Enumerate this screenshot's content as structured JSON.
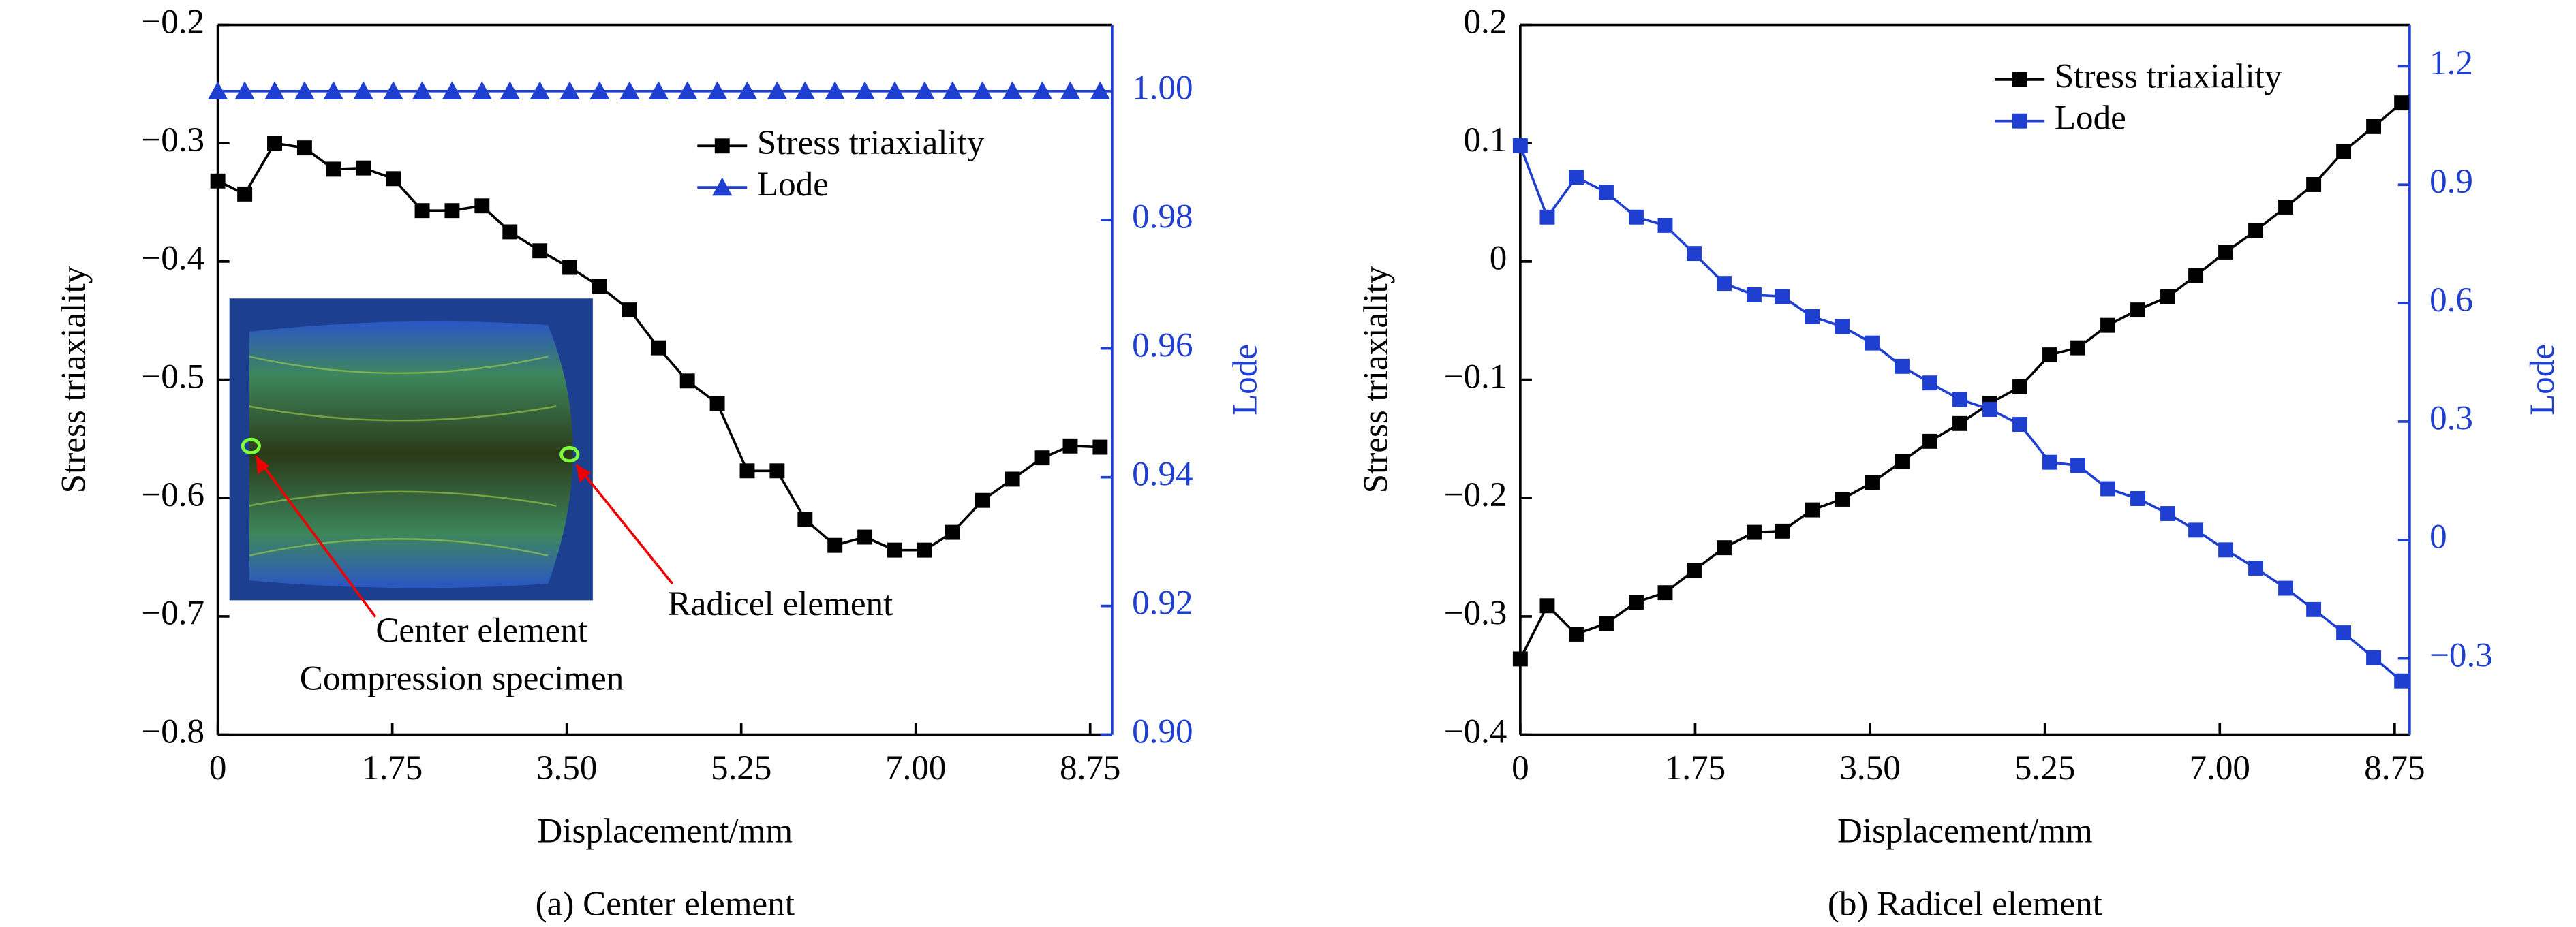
{
  "chart_data": [
    {
      "type": "line",
      "title": "(a) Center element",
      "xlabel": "Displacement/mm",
      "ylabel": "Stress triaxiality",
      "y2label": "Lode",
      "x": [
        0,
        0.27,
        0.57,
        0.87,
        1.16,
        1.46,
        1.76,
        2.05,
        2.35,
        2.65,
        2.93,
        3.23,
        3.53,
        3.83,
        4.13,
        4.42,
        4.71,
        5.01,
        5.31,
        5.61,
        5.89,
        6.19,
        6.49,
        6.79,
        7.09,
        7.37,
        7.67,
        7.97,
        8.27,
        8.55,
        8.85
      ],
      "series": [
        {
          "name": "Stress triaxiality",
          "color": "#000000",
          "marker": "square",
          "axis": "y",
          "values": [
            -0.332,
            -0.343,
            -0.3,
            -0.304,
            -0.322,
            -0.321,
            -0.33,
            -0.357,
            -0.357,
            -0.353,
            -0.375,
            -0.391,
            -0.405,
            -0.421,
            -0.441,
            -0.473,
            -0.501,
            -0.52,
            -0.577,
            -0.577,
            -0.618,
            -0.64,
            -0.633,
            -0.644,
            -0.644,
            -0.629,
            -0.602,
            -0.584,
            -0.566,
            -0.556,
            -0.557
          ]
        },
        {
          "name": "Lode",
          "color": "#1f3fd1",
          "marker": "triangle",
          "axis": "y2",
          "values": [
            1,
            1,
            1,
            1,
            1,
            1,
            1,
            1,
            1,
            1,
            1,
            1,
            1,
            1,
            1,
            1,
            1,
            1,
            1,
            1,
            1,
            1,
            1,
            1,
            1,
            1,
            1,
            1,
            1,
            1,
            1
          ]
        }
      ],
      "xlim": [
        0,
        8.97
      ],
      "xticks": [
        0,
        1.75,
        {
          "value": 3.5,
          "label": "3.50"
        },
        5.25,
        {
          "value": 7,
          "label": "7.00"
        },
        8.75
      ],
      "ylim": [
        -0.8,
        -0.2
      ],
      "yticks": [
        {
          "value": -0.2,
          "label": "−0.2"
        },
        {
          "value": -0.3,
          "label": "−0.3"
        },
        {
          "value": -0.4,
          "label": "−0.4"
        },
        {
          "value": -0.5,
          "label": "−0.5"
        },
        {
          "value": -0.6,
          "label": "−0.6"
        },
        {
          "value": -0.7,
          "label": "−0.7"
        },
        {
          "value": -0.8,
          "label": "−0.8"
        }
      ],
      "y2lim": [
        0.9,
        1.0103
      ],
      "y2ticks": [
        {
          "value": 0.9,
          "label": "0.90"
        },
        0.92,
        0.94,
        0.96,
        0.98,
        {
          "value": 1,
          "label": "1.00"
        }
      ],
      "legend": "upper right",
      "annotations": [
        "Center element",
        "Compression specimen",
        "Radicel element"
      ]
    },
    {
      "type": "line",
      "title": "(b) Radicel element",
      "xlabel": "Displacement/mm",
      "ylabel": "Stress triaxiality",
      "y2label": "Lode",
      "x": [
        0,
        0.27,
        0.56,
        0.86,
        1.16,
        1.45,
        1.74,
        2.04,
        2.34,
        2.62,
        2.92,
        3.22,
        3.52,
        3.82,
        4.1,
        4.4,
        4.7,
        5.0,
        5.3,
        5.58,
        5.88,
        6.18,
        6.48,
        6.76,
        7.06,
        7.36,
        7.66,
        7.94,
        8.24,
        8.54,
        8.82
      ],
      "series": [
        {
          "name": "Stress triaxiality",
          "color": "#000000",
          "marker": "square",
          "axis": "y",
          "values": [
            -0.336,
            -0.291,
            -0.315,
            -0.306,
            -0.288,
            -0.28,
            -0.261,
            -0.242,
            -0.229,
            -0.228,
            -0.21,
            -0.201,
            -0.187,
            -0.169,
            -0.152,
            -0.137,
            -0.12,
            -0.106,
            -0.079,
            -0.073,
            -0.054,
            -0.041,
            -0.03,
            -0.012,
            0.008,
            0.026,
            0.046,
            0.065,
            0.093,
            0.114,
            0.134
          ]
        },
        {
          "name": "Lode",
          "color": "#1f3fd1",
          "marker": "square",
          "axis": "y2",
          "values": [
            0.999,
            0.818,
            0.919,
            0.881,
            0.818,
            0.797,
            0.726,
            0.65,
            0.621,
            0.617,
            0.566,
            0.541,
            0.499,
            0.44,
            0.398,
            0.356,
            0.331,
            0.293,
            0.197,
            0.189,
            0.13,
            0.105,
            0.067,
            0.025,
            -0.025,
            -0.071,
            -0.122,
            -0.176,
            -0.235,
            -0.298,
            -0.357
          ]
        }
      ],
      "xlim": [
        0,
        8.9
      ],
      "xticks": [
        0,
        1.75,
        {
          "value": 3.5,
          "label": "3.50"
        },
        5.25,
        {
          "value": 7,
          "label": "7.00"
        },
        8.75
      ],
      "ylim": [
        -0.4,
        0.2
      ],
      "yticks": [
        0.2,
        0.1,
        0,
        {
          "value": -0.1,
          "label": "−0.1"
        },
        {
          "value": -0.2,
          "label": "−0.2"
        },
        {
          "value": -0.3,
          "label": "−0.3"
        },
        {
          "value": -0.4,
          "label": "−0.4"
        }
      ],
      "y2lim": [
        -0.493,
        1.305
      ],
      "y2ticks": [
        1.2,
        0.9,
        0.6,
        0.3,
        0,
        {
          "value": -0.3,
          "label": "−0.3"
        }
      ],
      "legend": "upper right"
    }
  ]
}
